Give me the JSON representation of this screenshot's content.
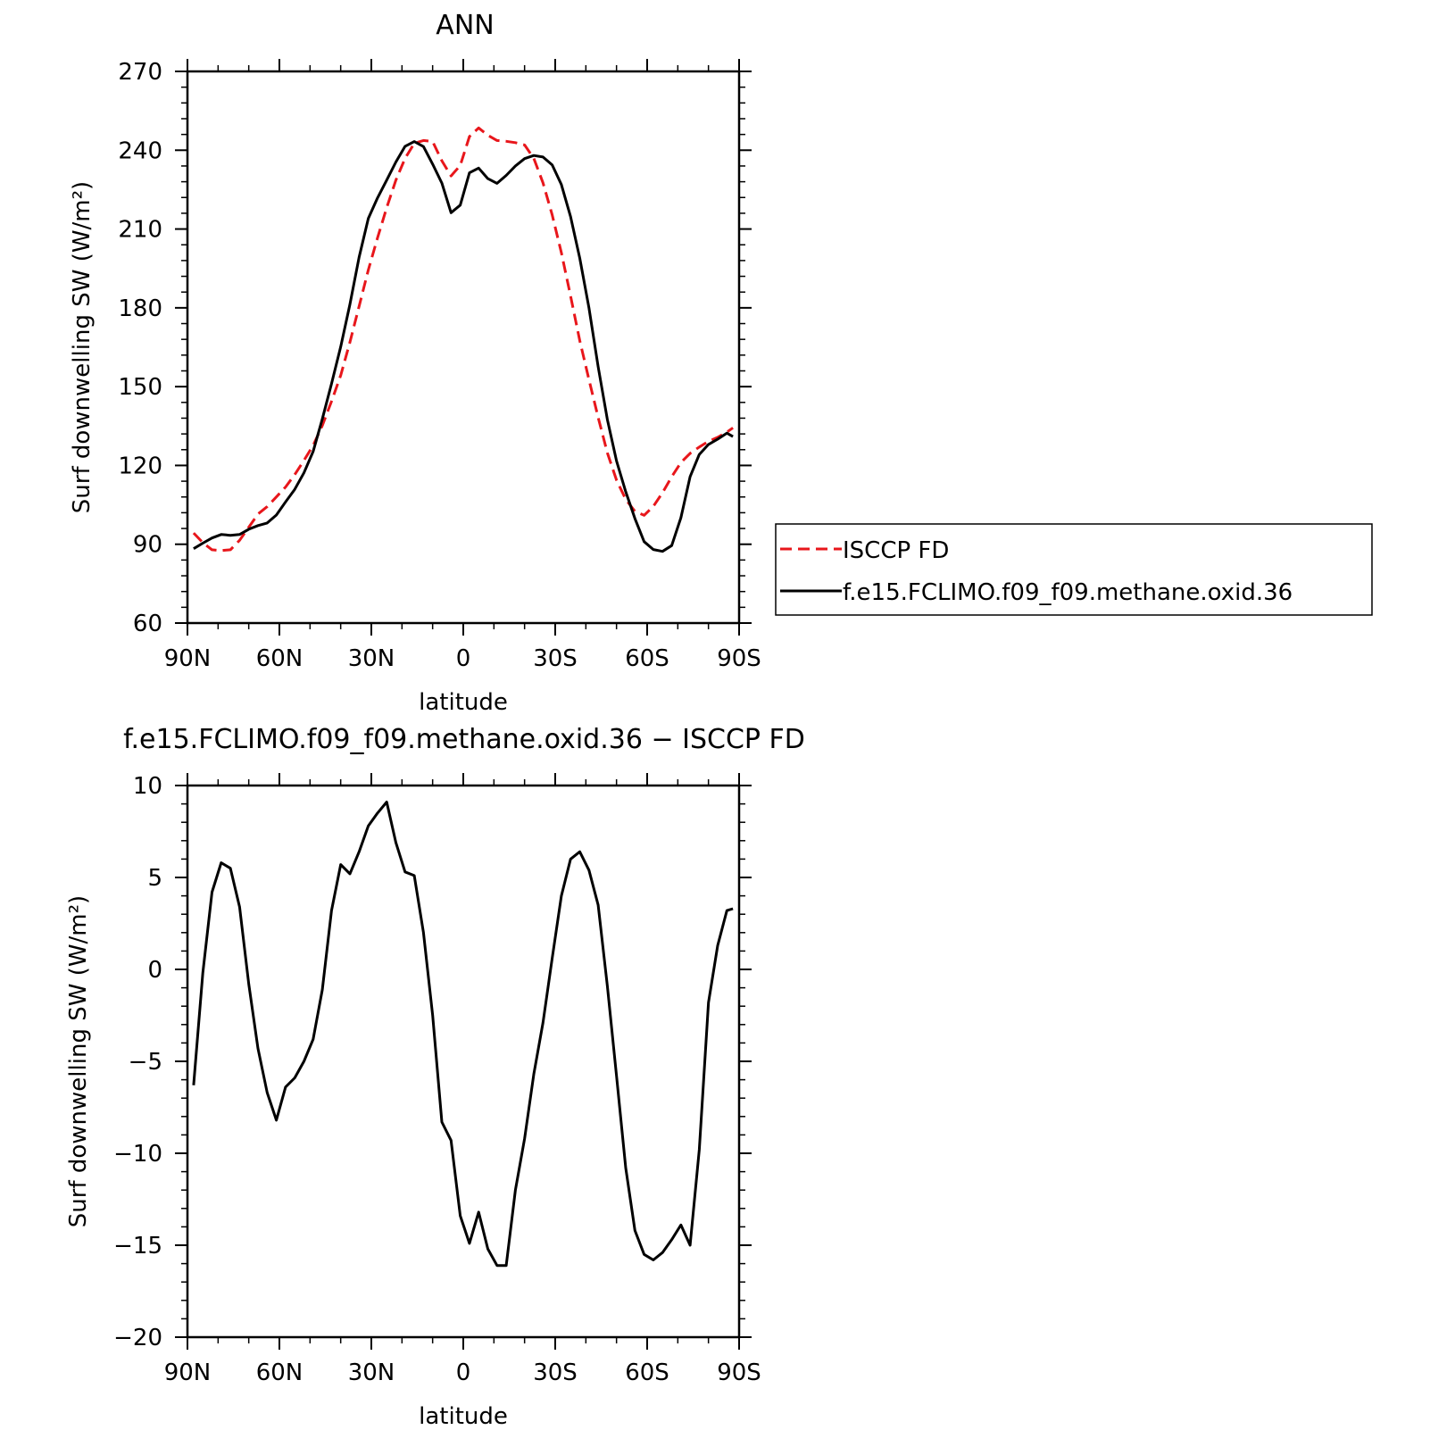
{
  "chart_data": [
    {
      "type": "line",
      "title": "ANN",
      "xlabel": "latitude",
      "ylabel": "Surf downwelling SW (W/m²)",
      "x_direction": "north-to-south",
      "xlim": [
        90,
        -90
      ],
      "ylim": [
        60,
        270
      ],
      "xticks": [
        90,
        60,
        30,
        0,
        -30,
        -60,
        -90
      ],
      "xtick_labels": [
        "90N",
        "60N",
        "30N",
        "0",
        "30S",
        "60S",
        "90S"
      ],
      "yticks": [
        60,
        90,
        120,
        150,
        180,
        210,
        240,
        270
      ],
      "ytick_labels": [
        "60",
        "90",
        "120",
        "150",
        "180",
        "210",
        "240",
        "270"
      ],
      "grid": false,
      "legend_position": "right",
      "series": [
        {
          "name": "ISCCP FD",
          "color": "#e8161b",
          "dash": "dashed",
          "x": [
            88,
            85,
            82,
            79,
            76,
            73,
            70,
            67,
            64,
            61,
            58,
            55,
            52,
            49,
            46,
            43,
            40,
            37,
            34,
            31,
            28,
            25,
            22,
            19,
            16,
            13,
            10,
            7,
            4,
            1,
            -2,
            -5,
            -8,
            -11,
            -14,
            -17,
            -20,
            -23,
            -26,
            -29,
            -32,
            -35,
            -38,
            -41,
            -44,
            -47,
            -50,
            -53,
            -56,
            -59,
            -62,
            -65,
            -68,
            -71,
            -74,
            -77,
            -80,
            -83,
            -86,
            -88
          ],
          "y": [
            94.3,
            90.6,
            87.9,
            87.6,
            87.9,
            91.5,
            96.5,
            101.5,
            104.3,
            108.0,
            111.8,
            116.5,
            121.9,
            127.6,
            135.2,
            144.4,
            154.3,
            166.9,
            180.6,
            194.4,
            206.6,
            218.1,
            228.6,
            236.9,
            242.6,
            243.7,
            243.3,
            236.0,
            230.2,
            234.2,
            245.2,
            248.5,
            245.7,
            243.7,
            243.4,
            242.9,
            242.0,
            236.9,
            227.6,
            215.4,
            201.0,
            184.5,
            167.5,
            152.7,
            138.3,
            124.8,
            114.4,
            107.1,
            102.5,
            101.0,
            104.4,
            109.6,
            115.7,
            121.1,
            124.6,
            127.0,
            129.2,
            130.7,
            132.7,
            134.3
          ]
        },
        {
          "name": "f.e15.FCLIMO.f09_f09.methane.oxid.36",
          "color": "#000000",
          "dash": "solid",
          "x": [
            88,
            85,
            82,
            79,
            76,
            73,
            70,
            67,
            64,
            61,
            58,
            55,
            52,
            49,
            46,
            43,
            40,
            37,
            34,
            31,
            28,
            25,
            22,
            19,
            16,
            13,
            10,
            7,
            4,
            1,
            -2,
            -5,
            -8,
            -11,
            -14,
            -17,
            -20,
            -23,
            -26,
            -29,
            -32,
            -35,
            -38,
            -41,
            -44,
            -47,
            -50,
            -53,
            -56,
            -59,
            -62,
            -65,
            -68,
            -71,
            -74,
            -77,
            -80,
            -83,
            -86,
            -88
          ],
          "y": [
            88.3,
            90.4,
            92.4,
            93.7,
            93.4,
            93.7,
            95.7,
            97.1,
            98.1,
            101.1,
            106.1,
            110.9,
            117.2,
            125.3,
            137.7,
            151.1,
            165.2,
            181.3,
            199.3,
            214.0,
            221.8,
            228.6,
            235.5,
            241.5,
            243.3,
            241.4,
            234.7,
            227.5,
            216.2,
            219.1,
            231.4,
            233.2,
            229.2,
            227.4,
            230.4,
            234.0,
            236.8,
            238.0,
            237.4,
            234.4,
            226.9,
            214.7,
            198.9,
            180.0,
            157.6,
            137.5,
            121.7,
            110.0,
            99.8,
            91.0,
            88.0,
            87.3,
            89.5,
            100.1,
            115.7,
            124.2,
            128.0,
            130.0,
            132.3,
            131.0
          ]
        }
      ]
    },
    {
      "type": "line",
      "title": "f.e15.FCLIMO.f09_f09.methane.oxid.36 − ISCCP FD",
      "xlabel": "latitude",
      "ylabel": "Surf downwelling SW (W/m²)",
      "x_direction": "north-to-south",
      "xlim": [
        90,
        -90
      ],
      "ylim": [
        -20,
        10
      ],
      "xticks": [
        90,
        60,
        30,
        0,
        -30,
        -60,
        -90
      ],
      "xtick_labels": [
        "90N",
        "60N",
        "30N",
        "0",
        "30S",
        "60S",
        "90S"
      ],
      "yticks": [
        -20,
        -15,
        -10,
        -5,
        0,
        5,
        10
      ],
      "ytick_labels": [
        "−20",
        "−15",
        "−10",
        "−5",
        "0",
        "5",
        "10"
      ],
      "grid": false,
      "series": [
        {
          "color": "#000000",
          "dash": "solid",
          "x": [
            88,
            85,
            82,
            79,
            76,
            73,
            70,
            67,
            64,
            61,
            58,
            55,
            52,
            49,
            46,
            43,
            40,
            37,
            34,
            31,
            28,
            25,
            22,
            19,
            16,
            13,
            10,
            7,
            4,
            1,
            -2,
            -5,
            -8,
            -11,
            -14,
            -17,
            -20,
            -23,
            -26,
            -29,
            -32,
            -35,
            -38,
            -41,
            -44,
            -47,
            -50,
            -53,
            -56,
            -59,
            -62,
            -65,
            -68,
            -71,
            -74,
            -77,
            -80,
            -83,
            -86,
            -88
          ],
          "y": [
            -6.3,
            -0.2,
            4.2,
            5.8,
            5.5,
            3.4,
            -0.8,
            -4.3,
            -6.7,
            -8.2,
            -6.4,
            -5.9,
            -5.0,
            -3.8,
            -1.1,
            3.2,
            5.7,
            5.2,
            6.4,
            7.8,
            8.5,
            9.1,
            6.9,
            5.3,
            5.1,
            2.0,
            -2.5,
            -8.3,
            -9.3,
            -13.4,
            -14.9,
            -13.2,
            -15.2,
            -16.1,
            -16.1,
            -12.0,
            -9.2,
            -5.7,
            -2.9,
            0.6,
            4.0,
            6.0,
            6.4,
            5.4,
            3.5,
            -0.9,
            -5.8,
            -10.8,
            -14.2,
            -15.5,
            -15.8,
            -15.4,
            -14.7,
            -13.9,
            -15.0,
            -9.8,
            -1.8,
            1.3,
            3.2,
            3.3
          ]
        }
      ]
    }
  ]
}
